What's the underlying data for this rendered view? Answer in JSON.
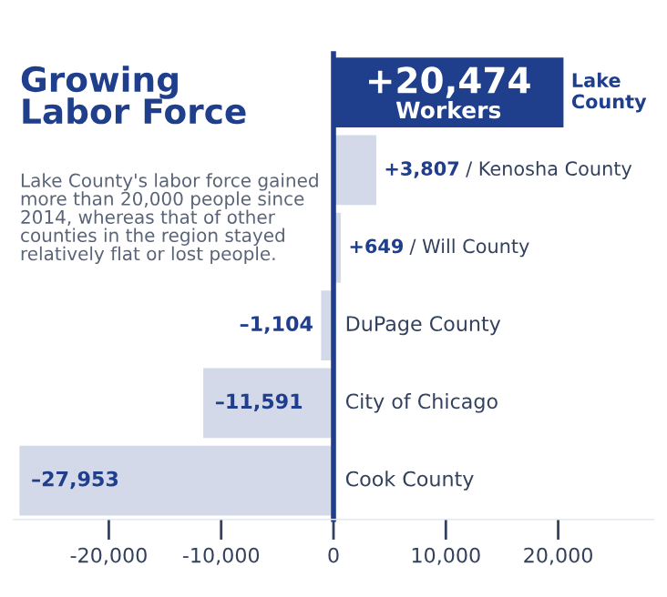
{
  "chart_data": {
    "type": "bar",
    "orientation": "horizontal",
    "title": "Growing\nLabor Force",
    "subtitle": "Lake County's labor force gained more than 20,000 people since 2014, whereas that of other counties in the region stayed relatively flat or lost people.",
    "categories": [
      "Lake County",
      "Kenosha County",
      "Will County",
      "DuPage County",
      "City of Chicago",
      "Cook County"
    ],
    "values": [
      20474,
      3807,
      649,
      -1104,
      -11591,
      -27953
    ],
    "colors": [
      "#1f3f8c",
      "#d3d9e8",
      "#d3d9e8",
      "#d3d9e8",
      "#d3d9e8",
      "#d3d9e8"
    ],
    "value_labels": [
      "+20,474",
      "+3,807 /",
      "+649 /",
      "–1,104",
      "–11,591",
      "–27,953"
    ],
    "annotations": [
      "Workers"
    ],
    "xlim": [
      -28500,
      28500
    ],
    "xticks": [
      {
        "value": -20000,
        "label": "-20,000"
      },
      {
        "value": -10000,
        "label": "-10,000"
      },
      0,
      {
        "value": 10000,
        "label": "10,000"
      },
      {
        "value": 20000,
        "label": "20,000"
      }
    ],
    "grid": false,
    "legend": false
  }
}
